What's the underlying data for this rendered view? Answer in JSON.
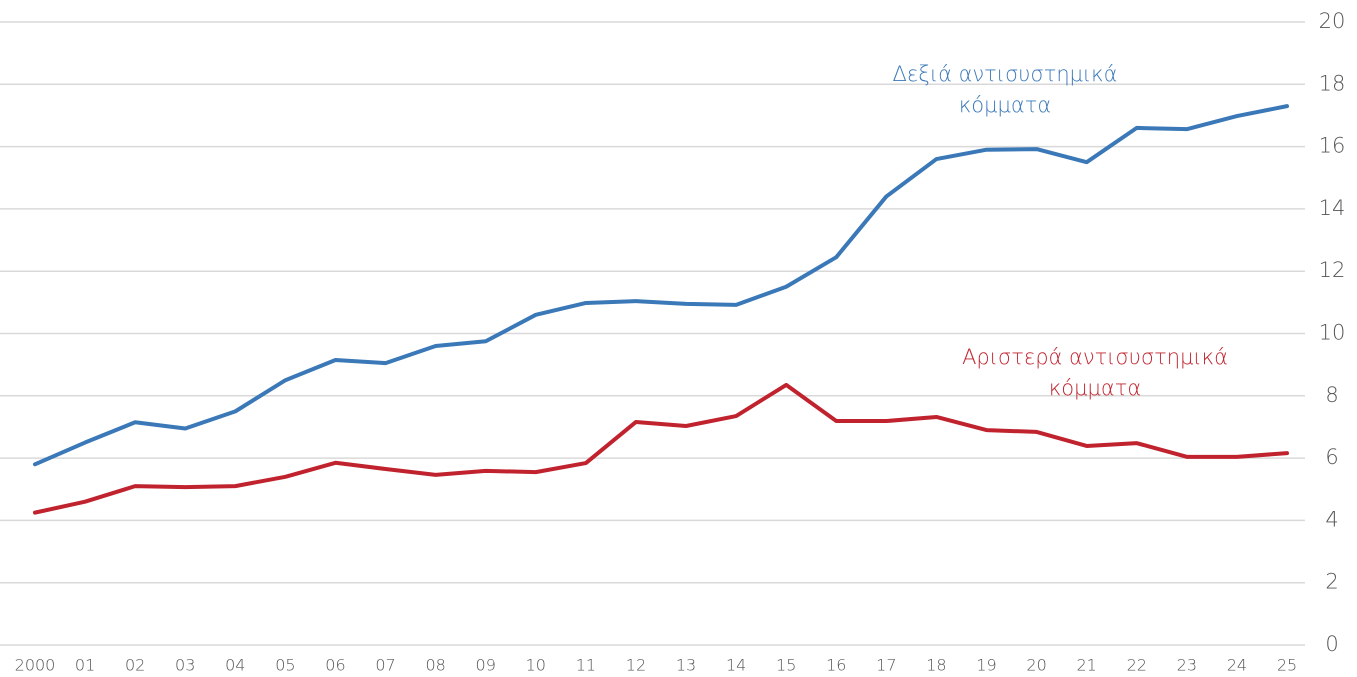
{
  "chart_data": {
    "type": "line",
    "categories": [
      "2000",
      "01",
      "02",
      "03",
      "04",
      "05",
      "06",
      "07",
      "08",
      "09",
      "10",
      "11",
      "12",
      "13",
      "14",
      "15",
      "16",
      "17",
      "18",
      "19",
      "20",
      "21",
      "22",
      "23",
      "24",
      "25"
    ],
    "series": [
      {
        "name": "Δεξιά αντισυστημικά κόμματα",
        "color": "#3a78b8",
        "values": [
          5.8,
          6.5,
          7.15,
          6.95,
          7.5,
          8.5,
          9.15,
          9.05,
          9.6,
          9.75,
          10.6,
          10.98,
          11.04,
          10.95,
          10.92,
          11.5,
          12.45,
          14.4,
          15.6,
          15.9,
          15.92,
          15.5,
          16.6,
          16.56,
          16.98,
          17.3
        ]
      },
      {
        "name": "Αριστερά αντισυστημικά κόμματα",
        "color": "#c0232e",
        "values": [
          4.25,
          4.6,
          5.1,
          5.07,
          5.1,
          5.4,
          5.85,
          5.65,
          5.46,
          5.59,
          5.55,
          5.84,
          7.16,
          7.03,
          7.35,
          8.35,
          7.19,
          7.19,
          7.32,
          6.9,
          6.84,
          6.39,
          6.48,
          6.04,
          6.04,
          6.16
        ]
      }
    ],
    "ylim": [
      0,
      20
    ],
    "yticks": [
      0,
      2,
      4,
      6,
      8,
      10,
      12,
      14,
      16,
      18,
      20
    ],
    "grid": true,
    "y_axis_side": "right"
  }
}
